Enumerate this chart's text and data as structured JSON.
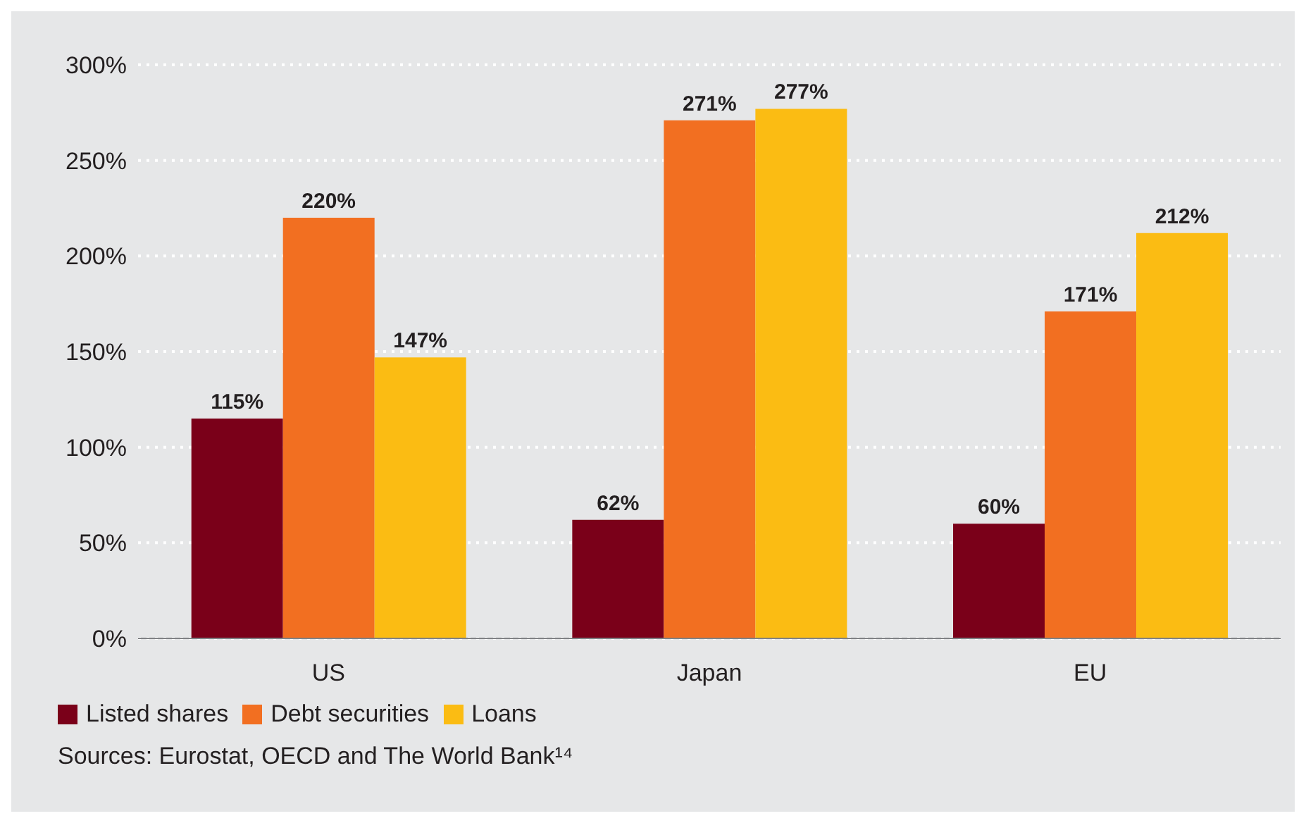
{
  "chart_data": {
    "type": "bar",
    "categories": [
      "US",
      "Japan",
      "EU"
    ],
    "series": [
      {
        "name": "Listed shares",
        "color": "#7a0019",
        "values": [
          115,
          62,
          60
        ],
        "value_labels": [
          "115%",
          "62%",
          "60%"
        ]
      },
      {
        "name": "Debt securities",
        "color": "#f26f21",
        "values": [
          220,
          271,
          171
        ],
        "value_labels": [
          "220%",
          "271%",
          "171%"
        ]
      },
      {
        "name": "Loans",
        "color": "#fbbc13",
        "values": [
          147,
          277,
          212
        ],
        "value_labels": [
          "147%",
          "277%",
          "212%"
        ]
      }
    ],
    "ylim": [
      0,
      300
    ],
    "yticks": [
      {
        "value": 0,
        "label": "0%"
      },
      {
        "value": 50,
        "label": "50%"
      },
      {
        "value": 100,
        "label": "100%"
      },
      {
        "value": 150,
        "label": "150%"
      },
      {
        "value": 200,
        "label": "200%"
      },
      {
        "value": 250,
        "label": "250%"
      },
      {
        "value": 300,
        "label": "300%"
      }
    ],
    "grid": "y",
    "legend": "bottom left",
    "annotations": [
      "Sources: Eurostat, OECD and The World Bank¹⁴"
    ]
  }
}
